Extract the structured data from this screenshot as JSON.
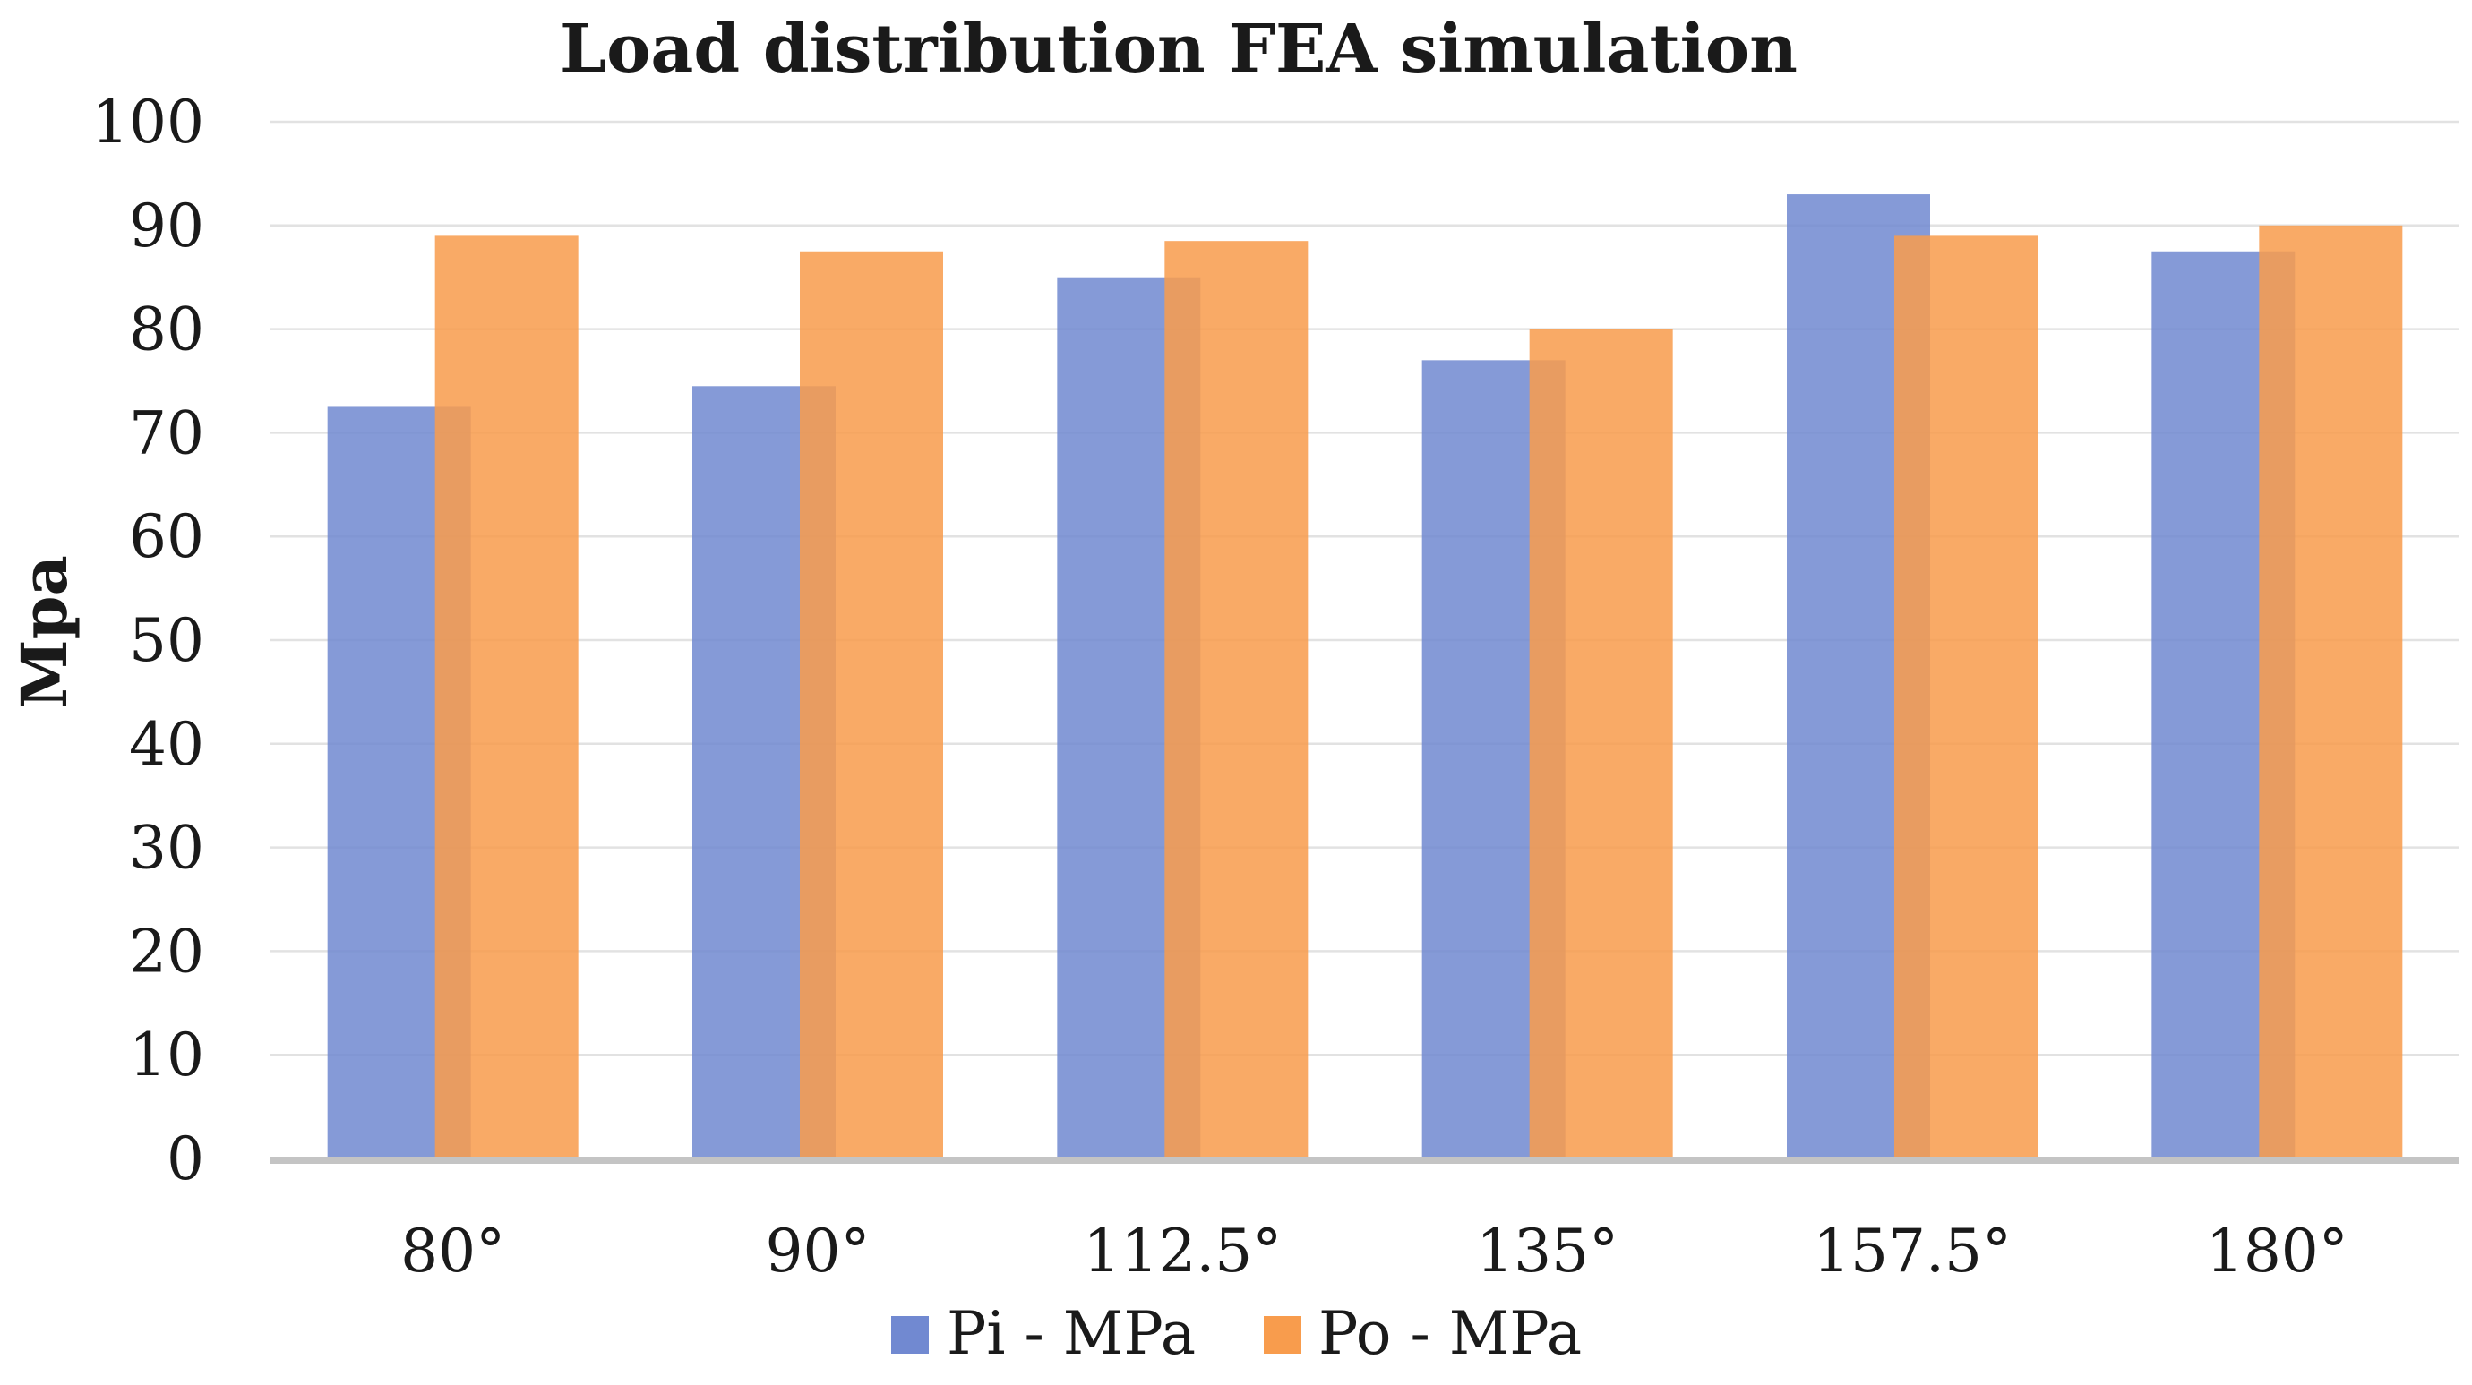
{
  "chart_data": {
    "type": "bar",
    "title": "Load distribution FEA simulation",
    "xlabel": "",
    "ylabel": "Mpa",
    "ylim": [
      0,
      100
    ],
    "yticks": [
      "0",
      "10",
      "20",
      "30",
      "40",
      "50",
      "60",
      "70",
      "80",
      "90",
      "100"
    ],
    "grid": true,
    "legend_position": "bottom",
    "categories": [
      "80°",
      "90°",
      "112.5°",
      "135°",
      "157.5°",
      "180°"
    ],
    "series": [
      {
        "name": "Pi - MPa",
        "color": "#7189d1",
        "values": [
          72.5,
          74.5,
          85,
          77,
          93,
          87.5
        ]
      },
      {
        "name": "Po - MPa",
        "color": "#f89c4d",
        "values": [
          89,
          87.5,
          88.5,
          80,
          89,
          90
        ]
      }
    ]
  }
}
